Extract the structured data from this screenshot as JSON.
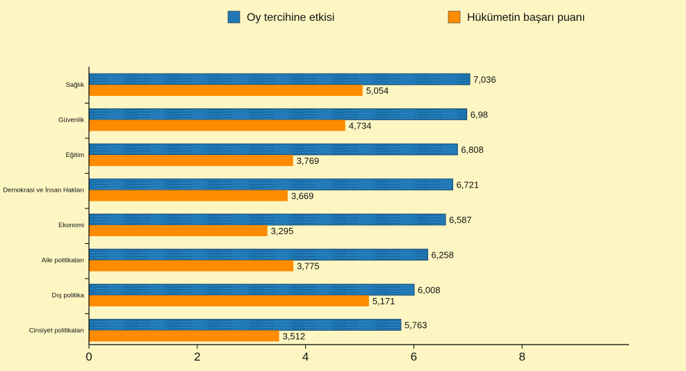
{
  "chart_data": {
    "type": "bar",
    "orientation": "horizontal",
    "categories": [
      "Sağlık",
      "Güvenlik",
      "Eğitim",
      "Demokrasi ve İnsan Hakları",
      "Ekonomi",
      "Aile politikaları",
      "Dış politika",
      "Cinsiyet politikaları"
    ],
    "series": [
      {
        "name": "Oy tercihine etkisi",
        "color": "#1f77b4",
        "values": [
          7.036,
          6.98,
          6.808,
          6.721,
          6.587,
          6.258,
          6.008,
          5.763
        ],
        "labels": [
          "7,036",
          "6,98",
          "6,808",
          "6,721",
          "6,587",
          "6,258",
          "6,008",
          "5,763"
        ]
      },
      {
        "name": "Hükümetin başarı puanı",
        "color": "#ff8c00",
        "values": [
          5.054,
          4.734,
          3.769,
          3.669,
          3.295,
          3.775,
          5.171,
          3.512
        ],
        "labels": [
          "5,054",
          "4,734",
          "3,769",
          "3,669",
          "3,295",
          "3,775",
          "5,171",
          "3,512"
        ]
      }
    ],
    "xlim": [
      0,
      10
    ],
    "xticks": [
      0,
      2,
      4,
      6,
      8
    ],
    "xtick_labels": [
      "0",
      "2",
      "4",
      "6",
      "8"
    ],
    "legend_position": "top",
    "grid": false,
    "background": "#fdf6c3"
  }
}
